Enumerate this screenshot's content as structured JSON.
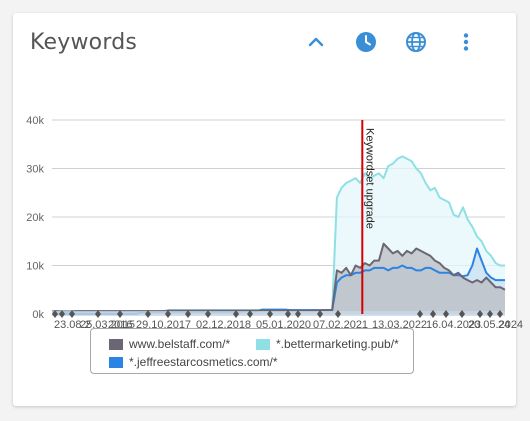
{
  "widget": {
    "title": "Keywords",
    "icons": {
      "collapse": "chevron-up-icon",
      "history": "clock-icon",
      "region": "globe-icon",
      "menu": "more-vertical-icon"
    },
    "accent_color": "#3a8ed6"
  },
  "chart_data": {
    "type": "area",
    "title": "",
    "xlabel": "",
    "ylabel": "",
    "ylim": [
      0,
      40000
    ],
    "y_ticks": [
      "0k",
      "10k",
      "20k",
      "30k",
      "40k"
    ],
    "x_tick_labels": [
      "23.08.2",
      "25.03.2015",
      "2016",
      "29.10.2017",
      "02.12.2018",
      "05.01.2020",
      "07.02.2021",
      "13.03.2022",
      "16.04.2023",
      "20.05.2024",
      "24"
    ],
    "annotation": {
      "label": "Keywordset upgrade",
      "x_position_fraction": 0.685,
      "color": "#d40000"
    },
    "grid": true,
    "legend_placement": "bottom",
    "series": [
      {
        "name": "www.belstaff.com/*",
        "color": "#6b6673",
        "fill": "#b9bcc2",
        "values": [
          500,
          600,
          500,
          500,
          500,
          600,
          600,
          600,
          600,
          600,
          600,
          600,
          600,
          600,
          600,
          600,
          600,
          600,
          600,
          600,
          600,
          600,
          600,
          600,
          600,
          700,
          700,
          700,
          700,
          700,
          700,
          700,
          700,
          700,
          700,
          700,
          700,
          700,
          700,
          700,
          700,
          700,
          700,
          700,
          700,
          700,
          700,
          700,
          700,
          700,
          700,
          700,
          700,
          700,
          700,
          700,
          700,
          700,
          800,
          800,
          800,
          9000,
          8500,
          9500,
          8000,
          10000,
          9500,
          10500,
          10000,
          11000,
          11000,
          14500,
          13500,
          12500,
          13000,
          12000,
          13000,
          12500,
          13500,
          13000,
          12500,
          12000,
          11000,
          10500,
          9500,
          9000,
          8000,
          8500,
          7500,
          7000,
          6500,
          7000,
          6500,
          7500,
          6500,
          5500,
          5500,
          5000
        ]
      },
      {
        "name": "*.bettermarketing.pub/*",
        "color": "#8ee0e4",
        "fill": "#e6f7fb",
        "values": [
          600,
          600,
          600,
          600,
          600,
          600,
          600,
          600,
          600,
          600,
          600,
          600,
          600,
          600,
          600,
          600,
          600,
          600,
          600,
          600,
          600,
          600,
          600,
          600,
          600,
          800,
          800,
          800,
          800,
          800,
          800,
          800,
          800,
          800,
          800,
          800,
          800,
          800,
          800,
          800,
          800,
          800,
          800,
          800,
          800,
          800,
          800,
          800,
          800,
          800,
          800,
          800,
          800,
          800,
          800,
          800,
          800,
          800,
          800,
          800,
          800,
          24000,
          26000,
          27000,
          27500,
          28000,
          27000,
          29000,
          28000,
          28500,
          29000,
          28000,
          30500,
          31000,
          32000,
          32500,
          32000,
          31500,
          30000,
          29000,
          27000,
          25500,
          26000,
          24000,
          23500,
          23000,
          20500,
          20000,
          22000,
          19500,
          18000,
          16000,
          15000,
          13000,
          12000,
          10500,
          10000,
          10000
        ]
      },
      {
        "name": "*.jeffreestarcosmetics.com/*",
        "color": "#2b84e3",
        "fill": "#c9dff2",
        "values": [
          0,
          0,
          0,
          0,
          0,
          0,
          0,
          0,
          0,
          0,
          0,
          0,
          0,
          0,
          0,
          0,
          0,
          0,
          0,
          300,
          400,
          500,
          500,
          500,
          500,
          500,
          500,
          500,
          500,
          500,
          500,
          500,
          500,
          500,
          500,
          500,
          500,
          500,
          500,
          500,
          500,
          600,
          600,
          600,
          600,
          900,
          900,
          900,
          900,
          900,
          900,
          800,
          800,
          800,
          800,
          800,
          800,
          800,
          800,
          800,
          800,
          6500,
          7500,
          8000,
          8000,
          8500,
          8500,
          9000,
          9000,
          9500,
          9500,
          9500,
          9000,
          9500,
          9500,
          10000,
          9500,
          9500,
          9000,
          9000,
          9500,
          9500,
          9000,
          8500,
          8500,
          8500,
          8000,
          8000,
          7800,
          8000,
          10000,
          13500,
          11000,
          8500,
          7500,
          7000,
          7000,
          7000
        ]
      }
    ]
  },
  "legend": [
    {
      "label": "www.belstaff.com/*",
      "color": "#6b6673"
    },
    {
      "label": "*.bettermarketing.pub/*",
      "color": "#8ee0e4"
    },
    {
      "label": "*.jeffreestarcosmetics.com/*",
      "color": "#2b84e3"
    }
  ]
}
